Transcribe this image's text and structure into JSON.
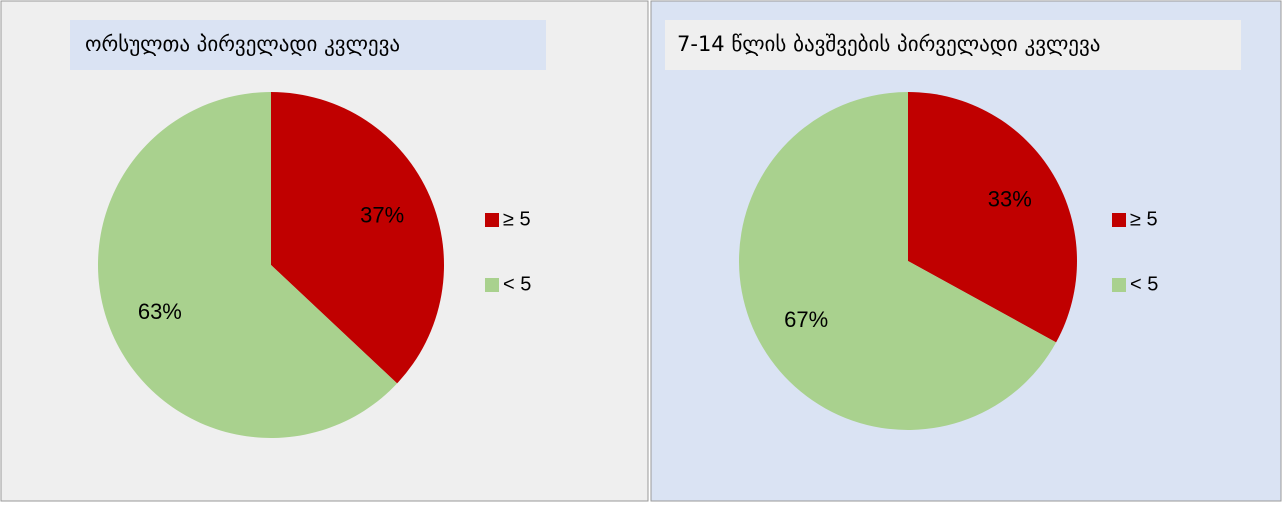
{
  "chart_data": [
    {
      "type": "pie",
      "title": "ორსულთა პირველადი კვლევა",
      "categories": [
        "≥ 5",
        "< 5"
      ],
      "values": [
        37,
        63
      ],
      "value_labels": [
        "37%",
        "63%"
      ],
      "colors": [
        "#c00000",
        "#a9d18e"
      ]
    },
    {
      "type": "pie",
      "title": "7-14 წლის ბავშვების პირველადი კვლევა",
      "categories": [
        "≥ 5",
        "< 5"
      ],
      "values": [
        33,
        67
      ],
      "value_labels": [
        "33%",
        "67%"
      ],
      "colors": [
        "#c00000",
        "#a9d18e"
      ]
    }
  ]
}
